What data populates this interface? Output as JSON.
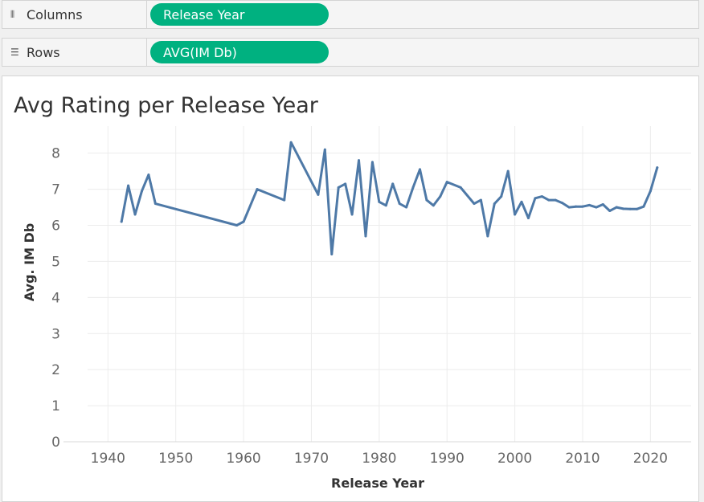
{
  "shelves": {
    "columns": {
      "label": "Columns",
      "icon": "columns-icon",
      "pill": "Release Year"
    },
    "rows": {
      "label": "Rows",
      "icon": "rows-icon",
      "pill": "AVG(IM Db)"
    }
  },
  "colors": {
    "pill": "#00b180",
    "line": "#4e79a7",
    "title": "#333333"
  },
  "chart_data": {
    "type": "line",
    "title": "Avg Rating per Release Year",
    "xlabel": "Release Year",
    "ylabel": "Avg. IM Db",
    "xlim": [
      1937,
      2026
    ],
    "ylim": [
      0,
      8.75
    ],
    "xticks": [
      1940,
      1950,
      1960,
      1970,
      1980,
      1990,
      2000,
      2010,
      2020
    ],
    "yticks": [
      0,
      1,
      2,
      3,
      4,
      5,
      6,
      7,
      8
    ],
    "grid": true,
    "series": [
      {
        "x": [
          1942,
          1943,
          1944,
          1945,
          1946,
          1947,
          1959,
          1960,
          1962,
          1966,
          1967,
          1971,
          1972,
          1973,
          1974,
          1975,
          1976,
          1977,
          1978,
          1979,
          1980,
          1981,
          1982,
          1983,
          1984,
          1985,
          1986,
          1987,
          1988,
          1989,
          1990,
          1992,
          1994,
          1995,
          1996,
          1997,
          1998,
          1999,
          2000,
          2001,
          2002,
          2003,
          2004,
          2005,
          2006,
          2007,
          2008,
          2009,
          2010,
          2011,
          2012,
          2013,
          2014,
          2015,
          2016,
          2017,
          2018,
          2019,
          2020,
          2021
        ],
        "y": [
          6.1,
          7.1,
          6.3,
          6.95,
          7.4,
          6.6,
          6.0,
          6.1,
          7.0,
          6.7,
          8.3,
          6.85,
          8.1,
          5.2,
          7.05,
          7.15,
          6.3,
          7.8,
          5.7,
          7.75,
          6.65,
          6.55,
          7.15,
          6.6,
          6.5,
          7.05,
          7.55,
          6.7,
          6.55,
          6.8,
          7.2,
          7.05,
          6.6,
          6.7,
          5.7,
          6.6,
          6.8,
          7.5,
          6.3,
          6.65,
          6.2,
          6.75,
          6.8,
          6.7,
          6.7,
          6.62,
          6.5,
          6.52,
          6.52,
          6.56,
          6.5,
          6.58,
          6.4,
          6.5,
          6.46,
          6.45,
          6.45,
          6.52,
          6.95,
          7.6
        ]
      }
    ]
  }
}
